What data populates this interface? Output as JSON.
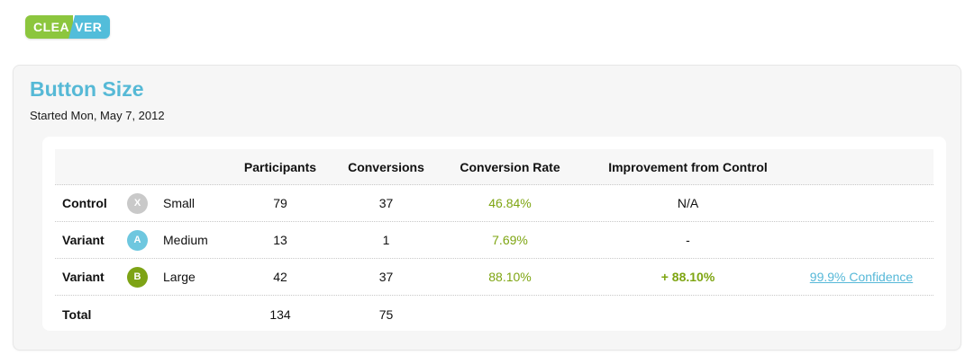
{
  "logo": {
    "part1": "CLEA",
    "part2": "VER"
  },
  "experiment": {
    "title": "Button Size",
    "started": "Started Mon, May 7, 2012"
  },
  "table": {
    "headers": {
      "participants": "Participants",
      "conversions": "Conversions",
      "conversion_rate": "Conversion Rate",
      "improvement": "Improvement from Control"
    },
    "rows": [
      {
        "type": "Control",
        "badge": "X",
        "name": "Small",
        "participants": "79",
        "conversions": "37",
        "conversion_rate": "46.84%",
        "improvement": "N/A",
        "confidence": ""
      },
      {
        "type": "Variant",
        "badge": "A",
        "name": "Medium",
        "participants": "13",
        "conversions": "1",
        "conversion_rate": "7.69%",
        "improvement": "-",
        "confidence": ""
      },
      {
        "type": "Variant",
        "badge": "B",
        "name": "Large",
        "participants": "42",
        "conversions": "37",
        "conversion_rate": "88.10%",
        "improvement": "+ 88.10%",
        "confidence": "99.9% Confidence"
      }
    ],
    "total": {
      "label": "Total",
      "participants": "134",
      "conversions": "75"
    }
  },
  "colors": {
    "logo_green": "#8cc63e",
    "logo_blue": "#52bdda",
    "title_blue": "#56b9d6",
    "metric_green": "#7ea512",
    "link_blue": "#56b8d8",
    "badge_gray": "#c9c9c9",
    "badge_blue": "#6ec7df",
    "badge_green": "#7da315",
    "card_bg": "#f6f6f6",
    "header_row_bg": "#f7f7f7"
  }
}
